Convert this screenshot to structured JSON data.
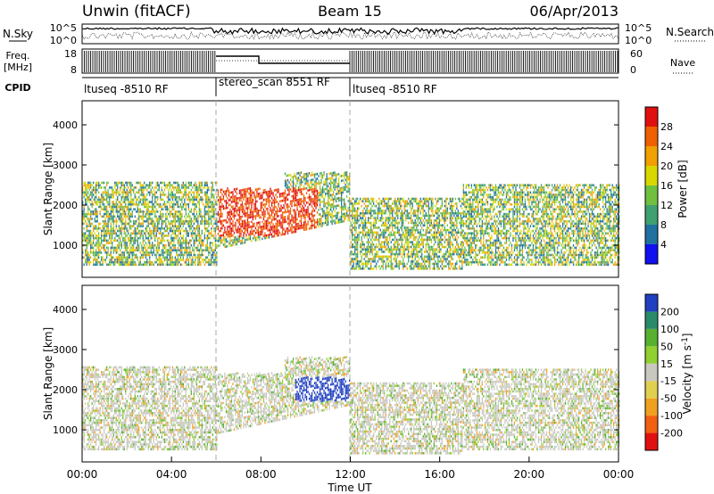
{
  "chart_data": [
    {
      "type": "line",
      "panel": "sky-noise-search-noise",
      "header": {
        "station": "Unwin (fitACF)",
        "beam": "Beam 15",
        "date": "06/Apr/2013"
      },
      "ylabel_left": "N.Sky",
      "ylabel_right": "N.Search",
      "left_ticks": [
        "10^5",
        "10^0"
      ],
      "right_ticks": [
        "10^5",
        "10^0"
      ]
    },
    {
      "type": "line",
      "panel": "frequency-nave",
      "ylabel_left": "Freq. [MHz]",
      "ylabel_right": "Nave",
      "left_ticks": [
        "18",
        "8"
      ],
      "right_ticks": [
        "60",
        "0"
      ],
      "cpid_label": "CPID",
      "cpid_segments": [
        {
          "label": "ltuseq -8510 RF",
          "start_h": 0,
          "end_h": 6
        },
        {
          "label": "stereo_scan 8551 RF",
          "start_h": 6,
          "end_h": 12
        },
        {
          "label": "ltuseq -8510 RF",
          "start_h": 12,
          "end_h": 24
        }
      ]
    },
    {
      "type": "heatmap",
      "panel": "power",
      "ylabel": "Slant Range [km]",
      "y_ticks": [
        "1000",
        "2000",
        "3000",
        "4000"
      ],
      "ylim": [
        200,
        4600
      ],
      "colorbar_label": "Power [dB]",
      "colorbar_ticks": [
        "4",
        "8",
        "12",
        "16",
        "20",
        "24",
        "28"
      ],
      "colorbar_colors": [
        "#1010f0",
        "#2070a0",
        "#40a070",
        "#70c040",
        "#d8d800",
        "#f0a000",
        "#f06000",
        "#e01010"
      ]
    },
    {
      "type": "heatmap",
      "panel": "velocity",
      "ylabel": "Slant Range [km]",
      "y_ticks": [
        "1000",
        "2000",
        "3000",
        "4000"
      ],
      "ylim": [
        200,
        4600
      ],
      "colorbar_label": "Velocity [m s-1]",
      "colorbar_ticks": [
        "200",
        "100",
        "50",
        "15",
        "-15",
        "-50",
        "-100",
        "-200"
      ],
      "colorbar_colors": [
        "#2040c0",
        "#2a8a6a",
        "#58b030",
        "#90d030",
        "#c8c8c0",
        "#e0d050",
        "#f0a020",
        "#f06010",
        "#e01010"
      ],
      "xlabel": "Time UT",
      "x_ticks": [
        "00:00",
        "04:00",
        "08:00",
        "12:00",
        "16:00",
        "20:00",
        "00:00"
      ]
    }
  ]
}
